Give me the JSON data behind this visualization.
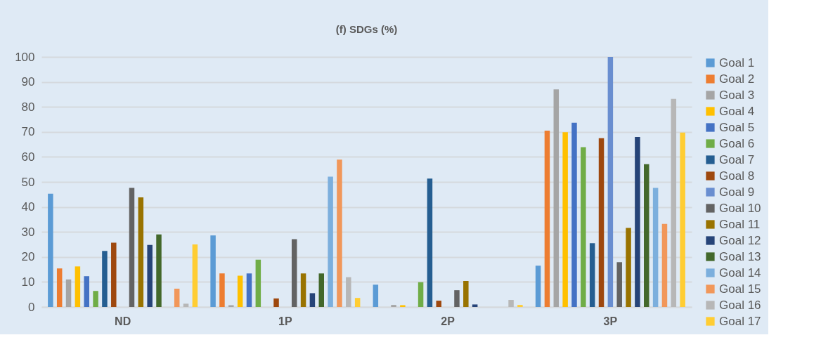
{
  "chart_data": {
    "type": "bar",
    "title": "(f) SDGs (%)",
    "categories": [
      "ND",
      "1P",
      "2P",
      "3P"
    ],
    "ylim": [
      0,
      100
    ],
    "yticks": [
      0,
      10,
      20,
      30,
      40,
      50,
      60,
      70,
      80,
      90,
      100
    ],
    "grid": "y",
    "legend": "right",
    "series": [
      {
        "name": "Goal 1",
        "color": "#5b9bd5",
        "values": [
          45.3,
          28.6,
          8.9,
          16.5
        ]
      },
      {
        "name": "Goal 2",
        "color": "#ed7d31",
        "values": [
          15.4,
          13.4,
          0,
          70.5
        ]
      },
      {
        "name": "Goal 3",
        "color": "#a5a5a5",
        "values": [
          11.0,
          0.7,
          0.8,
          87.0
        ]
      },
      {
        "name": "Goal 4",
        "color": "#ffc000",
        "values": [
          16.2,
          12.5,
          0.7,
          69.9
        ]
      },
      {
        "name": "Goal 5",
        "color": "#4472c4",
        "values": [
          12.3,
          13.4,
          0,
          73.7
        ]
      },
      {
        "name": "Goal 6",
        "color": "#70ad47",
        "values": [
          6.4,
          18.9,
          9.9,
          63.9
        ]
      },
      {
        "name": "Goal 7",
        "color": "#255e91",
        "values": [
          22.4,
          0,
          51.3,
          25.5
        ]
      },
      {
        "name": "Goal 8",
        "color": "#9e480e",
        "values": [
          25.7,
          3.4,
          2.5,
          67.5
        ]
      },
      {
        "name": "Goal 9",
        "color": "#698ed0",
        "values": [
          0,
          0,
          0,
          100
        ]
      },
      {
        "name": "Goal 10",
        "color": "#636363",
        "values": [
          47.6,
          27.1,
          6.7,
          17.9
        ]
      },
      {
        "name": "Goal 11",
        "color": "#997300",
        "values": [
          43.8,
          13.4,
          10.4,
          31.6
        ]
      },
      {
        "name": "Goal 12",
        "color": "#264478",
        "values": [
          24.8,
          5.5,
          1.0,
          68.0
        ]
      },
      {
        "name": "Goal 13",
        "color": "#43682b",
        "values": [
          29.0,
          13.4,
          0,
          57.1
        ]
      },
      {
        "name": "Goal 14",
        "color": "#7cafdd",
        "values": [
          0,
          52.1,
          0,
          47.6
        ]
      },
      {
        "name": "Goal 15",
        "color": "#f1975a",
        "values": [
          7.3,
          58.9,
          0,
          33.2
        ]
      },
      {
        "name": "Goal 16",
        "color": "#b7b7b7",
        "values": [
          1.3,
          11.9,
          2.8,
          83.2
        ]
      },
      {
        "name": "Goal 17",
        "color": "#ffcd33",
        "values": [
          25.0,
          3.6,
          0.8,
          69.7
        ]
      }
    ]
  }
}
